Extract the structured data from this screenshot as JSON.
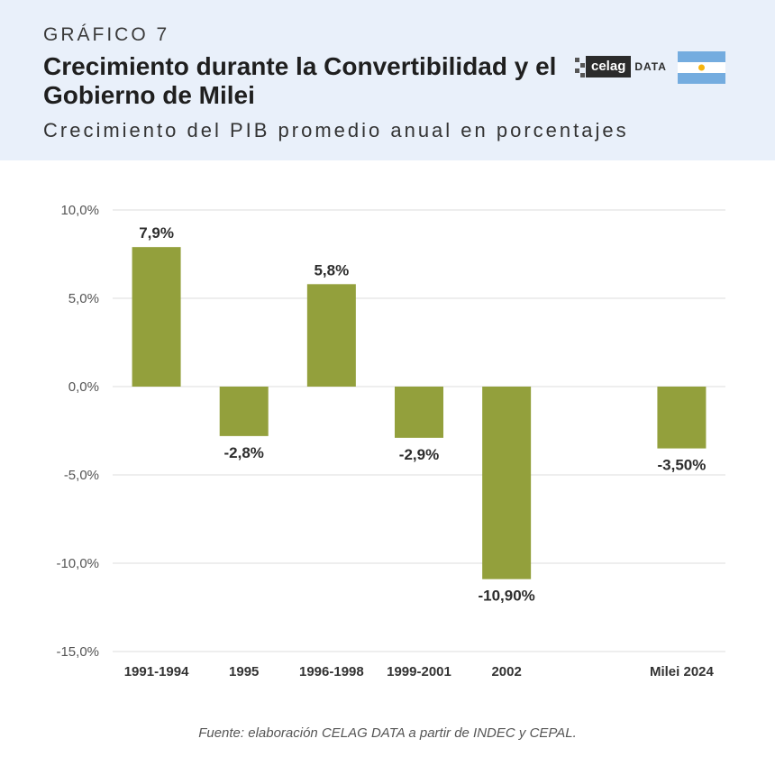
{
  "header": {
    "kicker": "GRÁFICO 7",
    "title": "Crecimiento durante la Convertibilidad y el Gobierno de Milei",
    "subtitle": "Crecimiento del PIB promedio anual en porcentajes",
    "logo_text": "celag",
    "logo_suffix": "DATA"
  },
  "colors": {
    "bar": "#93a03c",
    "header_bg": "#e9f0fa",
    "flag_blue": "#74acdf",
    "flag_sun": "#f6b40e"
  },
  "chart_data": {
    "type": "bar",
    "categories": [
      "1991-1994",
      "1995",
      "1996-1998",
      "1999-2001",
      "2002",
      "",
      "Milei 2024"
    ],
    "values": [
      7.9,
      -2.8,
      5.8,
      -2.9,
      -10.9,
      null,
      -3.5
    ],
    "data_labels": [
      "7,9%",
      "-2,8%",
      "5,8%",
      "-2,9%",
      "-10,90%",
      "",
      "-3,50%"
    ],
    "ylim": [
      -15,
      10
    ],
    "yticks": [
      10,
      5,
      0,
      -5,
      -10,
      -15
    ],
    "ytick_labels": [
      "10,0%",
      "5,0%",
      "0,0%",
      "-5,0%",
      "-10,0%",
      "-15,0%"
    ],
    "xlabel": "",
    "ylabel": "",
    "grid": true
  },
  "footer": {
    "source": "Fuente: elaboración CELAG DATA a partir de INDEC y CEPAL."
  }
}
